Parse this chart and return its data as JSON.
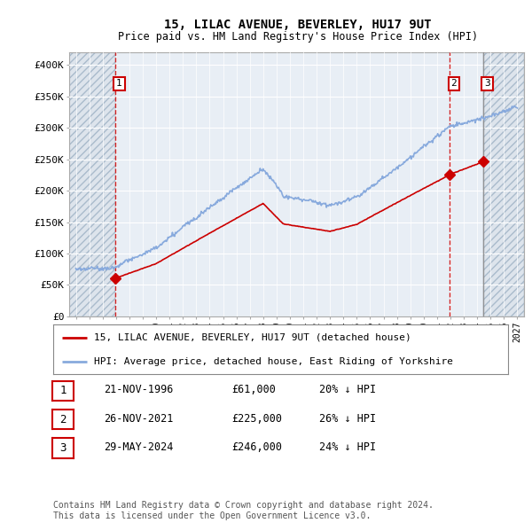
{
  "title": "15, LILAC AVENUE, BEVERLEY, HU17 9UT",
  "subtitle": "Price paid vs. HM Land Registry's House Price Index (HPI)",
  "ylim": [
    0,
    420000
  ],
  "yticks": [
    0,
    50000,
    100000,
    150000,
    200000,
    250000,
    300000,
    350000,
    400000
  ],
  "ytick_labels": [
    "£0",
    "£50K",
    "£100K",
    "£150K",
    "£200K",
    "£250K",
    "£300K",
    "£350K",
    "£400K"
  ],
  "xlim_start": 1993.5,
  "xlim_end": 2027.5,
  "hatch_left_end": 1996.92,
  "hatch_right_start": 2024.42,
  "sale_color": "#cc0000",
  "hpi_color": "#88aadd",
  "transactions": [
    {
      "label": "1",
      "date_year": 1996.92,
      "price": 61000,
      "vline_color": "#cc0000",
      "vline_style": "--"
    },
    {
      "label": "2",
      "date_year": 2021.92,
      "price": 225000,
      "vline_color": "#cc0000",
      "vline_style": "--"
    },
    {
      "label": "3",
      "date_year": 2024.42,
      "price": 246000,
      "vline_color": "#888888",
      "vline_style": "-"
    }
  ],
  "legend_entries": [
    "15, LILAC AVENUE, BEVERLEY, HU17 9UT (detached house)",
    "HPI: Average price, detached house, East Riding of Yorkshire"
  ],
  "table_rows": [
    [
      "1",
      "21-NOV-1996",
      "£61,000",
      "20% ↓ HPI"
    ],
    [
      "2",
      "26-NOV-2021",
      "£225,000",
      "26% ↓ HPI"
    ],
    [
      "3",
      "29-MAY-2024",
      "£246,000",
      "24% ↓ HPI"
    ]
  ],
  "footnote": "Contains HM Land Registry data © Crown copyright and database right 2024.\nThis data is licensed under the Open Government Licence v3.0.",
  "background_color": "#ffffff",
  "plot_bg_color": "#e8eef5",
  "hatch_bg_color": "#dde4ec"
}
